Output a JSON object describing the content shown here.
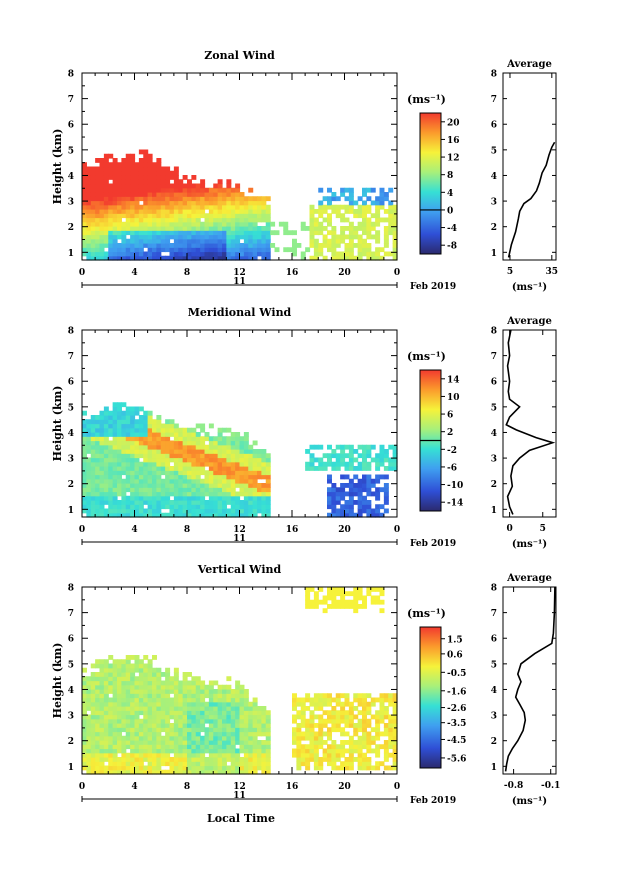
{
  "date_label": "Feb 2019",
  "day_label": "11",
  "xlabel_bottom": "Local Time",
  "colorbar_unit": "(ms⁻¹)",
  "chart_data": [
    {
      "type": "heatmap",
      "title": "Zonal Wind",
      "xlabel": "",
      "ylabel": "Height (km)",
      "x_ticks": [
        "0",
        "4",
        "8",
        "12",
        "16",
        "20",
        "0"
      ],
      "x_range": [
        0,
        24
      ],
      "y_ticks": [
        "1",
        "2",
        "3",
        "4",
        "5",
        "6",
        "7",
        "8"
      ],
      "y_range": [
        0.7,
        8.0
      ],
      "colorbar_ticks": [
        "20",
        "16",
        "12",
        "8",
        "4",
        "0",
        "-4",
        "-8"
      ],
      "colorbar_range": [
        -10,
        22
      ],
      "zero_line": 0,
      "average": {
        "title": "Average",
        "xlabel": "(ms⁻¹)",
        "x_ticks": [
          "5",
          "35"
        ],
        "x_range": [
          0,
          38
        ],
        "profile": [
          [
            4,
            0.8
          ],
          [
            6,
            1.3
          ],
          [
            9,
            1.8
          ],
          [
            11,
            2.3
          ],
          [
            12,
            2.6
          ],
          [
            15,
            2.9
          ],
          [
            20,
            3.1
          ],
          [
            24,
            3.4
          ],
          [
            26,
            3.7
          ],
          [
            28,
            4.1
          ],
          [
            31,
            4.4
          ],
          [
            33,
            4.8
          ],
          [
            35,
            5.1
          ],
          [
            37,
            5.3
          ]
        ]
      }
    },
    {
      "type": "heatmap",
      "title": "Meridional Wind",
      "xlabel": "",
      "ylabel": "Height (km)",
      "x_ticks": [
        "0",
        "4",
        "8",
        "12",
        "16",
        "20",
        "0"
      ],
      "x_range": [
        0,
        24
      ],
      "y_ticks": [
        "1",
        "2",
        "3",
        "4",
        "5",
        "6",
        "7",
        "8"
      ],
      "y_range": [
        0.7,
        8.0
      ],
      "colorbar_ticks": [
        "14",
        "10",
        "6",
        "2",
        "-2",
        "-6",
        "-10",
        "-14"
      ],
      "colorbar_range": [
        -16,
        16
      ],
      "zero_line": 0,
      "average": {
        "title": "Average",
        "xlabel": "(ms⁻¹)",
        "x_ticks": [
          "0",
          "5"
        ],
        "x_range": [
          -1,
          7
        ],
        "profile": [
          [
            0.5,
            0.8
          ],
          [
            0.0,
            1.1
          ],
          [
            -0.3,
            1.5
          ],
          [
            0.4,
            1.9
          ],
          [
            0.2,
            2.3
          ],
          [
            0.5,
            2.7
          ],
          [
            1.5,
            3.0
          ],
          [
            3.0,
            3.3
          ],
          [
            6.5,
            3.6
          ],
          [
            4.0,
            3.8
          ],
          [
            1.0,
            4.1
          ],
          [
            -0.5,
            4.3
          ],
          [
            0.0,
            4.6
          ],
          [
            1.5,
            5.0
          ],
          [
            0.0,
            5.3
          ],
          [
            -0.2,
            5.6
          ],
          [
            0.0,
            6.0
          ],
          [
            -0.3,
            6.6
          ],
          [
            0.0,
            7.0
          ],
          [
            -0.2,
            7.5
          ],
          [
            0.2,
            8.0
          ]
        ]
      }
    },
    {
      "type": "heatmap",
      "title": "Vertical Wind",
      "xlabel": "Local Time",
      "ylabel": "Height (km)",
      "x_ticks": [
        "0",
        "4",
        "8",
        "12",
        "16",
        "20",
        "0"
      ],
      "x_range": [
        0,
        24
      ],
      "y_ticks": [
        "1",
        "2",
        "3",
        "4",
        "5",
        "6",
        "7",
        "8"
      ],
      "y_range": [
        0.7,
        8.0
      ],
      "colorbar_ticks": [
        "1.5",
        "0.6",
        "-0.5",
        "-1.6",
        "-2.6",
        "-3.5",
        "-4.5",
        "-5.6"
      ],
      "colorbar_range": [
        -6.2,
        2.2
      ],
      "zero_line": null,
      "average": {
        "title": "Average",
        "xlabel": "(ms⁻¹)",
        "x_ticks": [
          "-0.8",
          "-0.1"
        ],
        "x_range": [
          -1.0,
          0.0
        ],
        "profile": [
          [
            -0.95,
            0.8
          ],
          [
            -0.93,
            1.1
          ],
          [
            -0.9,
            1.4
          ],
          [
            -0.82,
            1.7
          ],
          [
            -0.72,
            2.0
          ],
          [
            -0.62,
            2.4
          ],
          [
            -0.58,
            2.8
          ],
          [
            -0.6,
            3.1
          ],
          [
            -0.68,
            3.4
          ],
          [
            -0.76,
            3.7
          ],
          [
            -0.72,
            4.0
          ],
          [
            -0.66,
            4.3
          ],
          [
            -0.72,
            4.6
          ],
          [
            -0.66,
            5.0
          ],
          [
            -0.4,
            5.4
          ],
          [
            -0.08,
            5.8
          ],
          [
            -0.05,
            6.2
          ],
          [
            -0.03,
            7.0
          ],
          [
            -0.02,
            8.0
          ]
        ]
      }
    }
  ]
}
